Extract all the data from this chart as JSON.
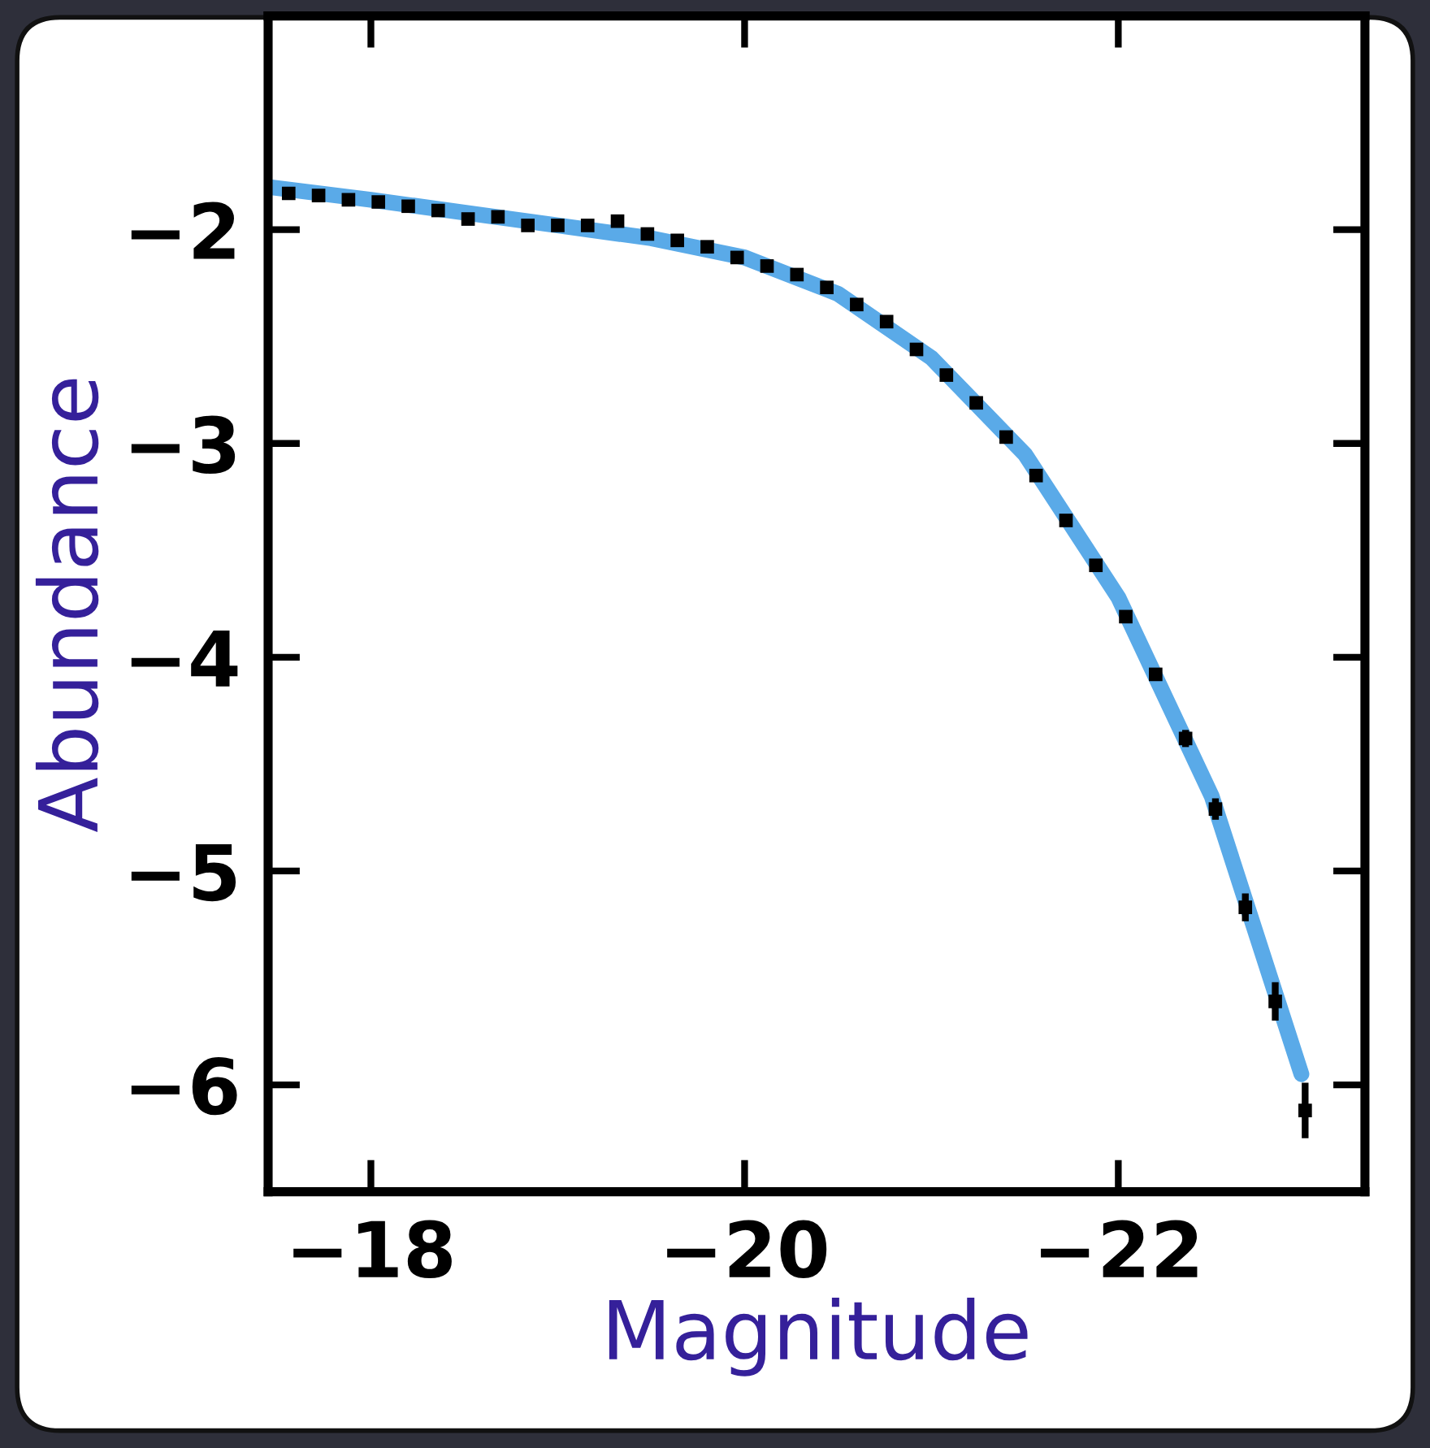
{
  "chart_data": {
    "type": "scatter",
    "xlabel": "Magnitude",
    "ylabel": "Abundance",
    "xlim": [
      -17.45,
      -23.32
    ],
    "ylim": [
      -6.5,
      -1.0
    ],
    "xticks": [
      {
        "value": -18,
        "label": "−18"
      },
      {
        "value": -20,
        "label": "−20"
      },
      {
        "value": -22,
        "label": "−22"
      }
    ],
    "yticks": [
      {
        "value": -2,
        "label": "−2"
      },
      {
        "value": -3,
        "label": "−3"
      },
      {
        "value": -4,
        "label": "−4"
      },
      {
        "value": -5,
        "label": "−5"
      },
      {
        "value": -6,
        "label": "−6"
      }
    ],
    "grid": false,
    "series": [
      {
        "type": "line",
        "color": "#5aaae8",
        "x": [
          -17.45,
          -18,
          -18.5,
          -19,
          -19.5,
          -20,
          -20.5,
          -21,
          -21.5,
          -22,
          -22.5,
          -22.98
        ],
        "values": [
          -1.8,
          -1.86,
          -1.92,
          -1.98,
          -2.04,
          -2.13,
          -2.3,
          -2.6,
          -3.05,
          -3.72,
          -4.65,
          -5.95
        ]
      },
      {
        "color": "#000000",
        "x": [
          -17.56,
          -17.72,
          -17.88,
          -18.04,
          -18.2,
          -18.36,
          -18.52,
          -18.68,
          -18.84,
          -19.0,
          -19.16,
          -19.32,
          -19.48,
          -19.64,
          -19.8,
          -19.96,
          -20.12,
          -20.28,
          -20.44,
          -20.6,
          -20.76,
          -20.92,
          -21.08,
          -21.24,
          -21.4,
          -21.56,
          -21.72,
          -21.88,
          -22.04,
          -22.2,
          -22.36,
          -22.52,
          -22.68,
          -22.84,
          -23.0
        ],
        "values": [
          -1.83,
          -1.84,
          -1.86,
          -1.87,
          -1.89,
          -1.91,
          -1.95,
          -1.94,
          -1.98,
          -1.98,
          -1.98,
          -1.96,
          -2.02,
          -2.05,
          -2.08,
          -2.13,
          -2.17,
          -2.21,
          -2.27,
          -2.35,
          -2.43,
          -2.56,
          -2.68,
          -2.81,
          -2.97,
          -3.15,
          -3.36,
          -3.57,
          -3.81,
          -4.08,
          -4.38,
          -4.71,
          -5.17,
          -5.61,
          -6.12
        ],
        "errors": [
          0.02,
          0.02,
          0.02,
          0.02,
          0.02,
          0.02,
          0.02,
          0.02,
          0.02,
          0.02,
          0.02,
          0.02,
          0.02,
          0.02,
          0.02,
          0.02,
          0.02,
          0.02,
          0.02,
          0.02,
          0.02,
          0.02,
          0.02,
          0.02,
          0.02,
          0.02,
          0.02,
          0.02,
          0.02,
          0.03,
          0.04,
          0.05,
          0.065,
          0.09,
          0.13
        ]
      }
    ]
  }
}
